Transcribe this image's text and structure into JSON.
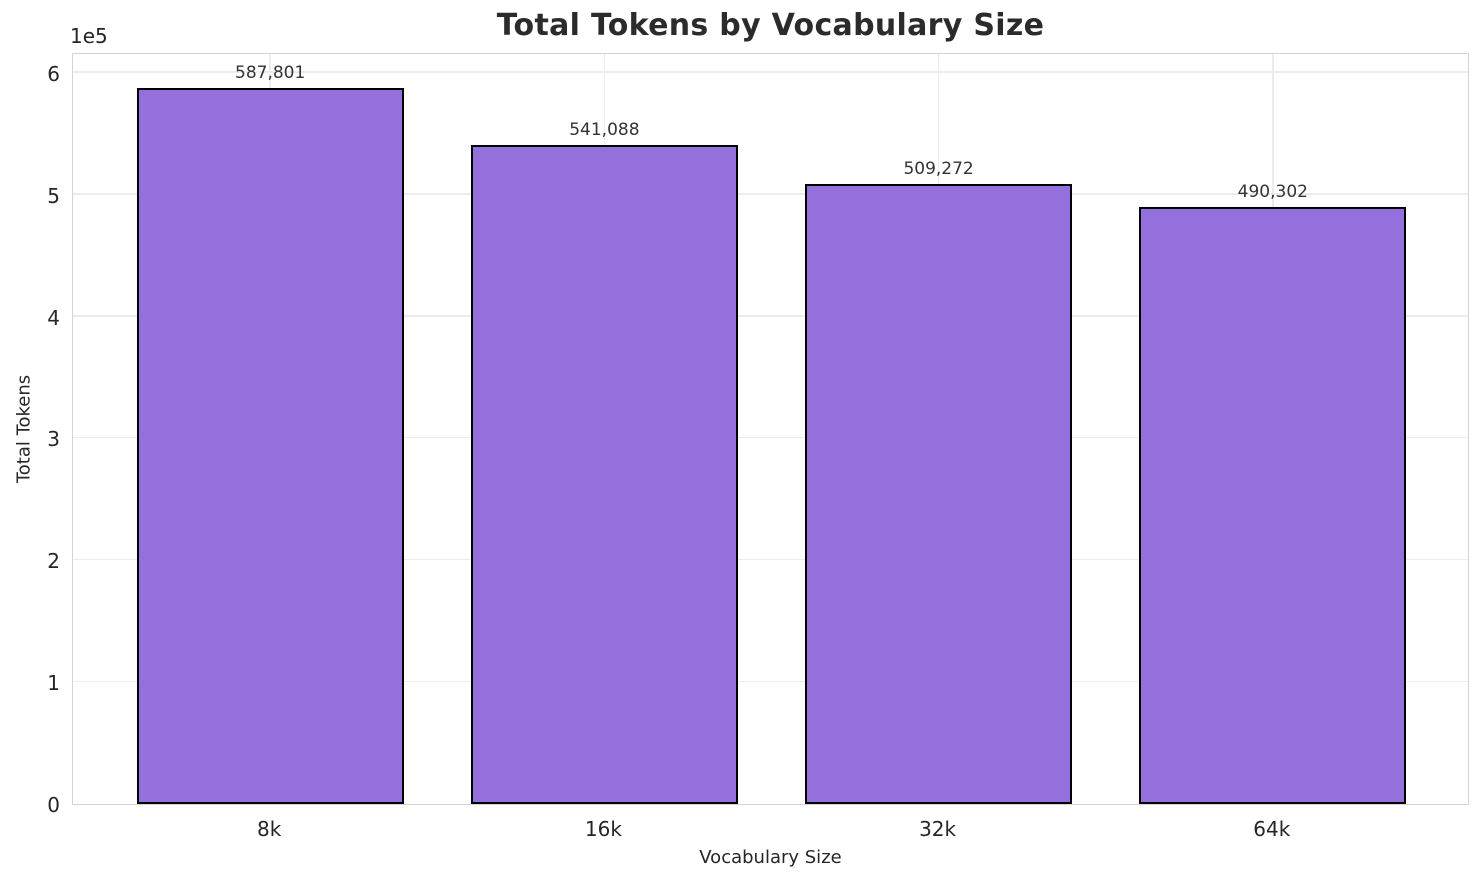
{
  "chart_data": {
    "type": "bar",
    "title": "Total Tokens by Vocabulary Size",
    "xlabel": "Vocabulary Size",
    "ylabel": "Total Tokens",
    "y_offset_text": "1e5",
    "categories": [
      "8k",
      "16k",
      "32k",
      "64k"
    ],
    "values": [
      587801,
      541088,
      509272,
      490302
    ],
    "value_labels": [
      "587,801",
      "541,088",
      "509,272",
      "490,302"
    ],
    "ylim": [
      0,
      617191
    ],
    "xlim": [
      -0.59,
      3.59
    ],
    "yticks": {
      "values": [
        0,
        100000,
        200000,
        300000,
        400000,
        500000,
        600000
      ],
      "labels": [
        "0",
        "1",
        "2",
        "3",
        "4",
        "5",
        "6"
      ]
    },
    "bar_width_fraction": 0.8,
    "grid": true,
    "legend": "none",
    "colors": {
      "bar_fill": "#9370DB",
      "bar_edge": "#000000",
      "grid": "#ececec",
      "spine": "#d4d4d4",
      "text": "#262626",
      "title": "#2b2b2b",
      "background": "#ffffff"
    }
  }
}
